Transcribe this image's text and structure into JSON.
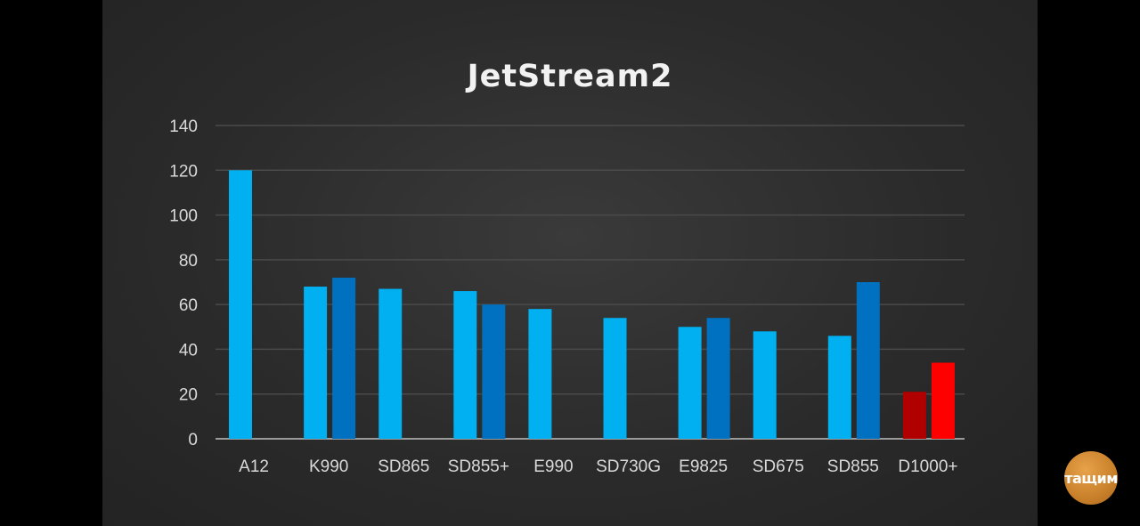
{
  "colors": {
    "series_light": "#00b0f0",
    "series_dark": "#0070c0",
    "highlight_dark": "#b00000",
    "highlight_light": "#ff0000",
    "logo": "#c9802a"
  },
  "logo": {
    "text": "тащим"
  },
  "chart_data": {
    "type": "bar",
    "title": "JetStream2",
    "xlabel": "",
    "ylabel": "",
    "ylim": [
      0,
      140
    ],
    "yticks": [
      0,
      20,
      40,
      60,
      80,
      100,
      120,
      140
    ],
    "grid": true,
    "legend": "none",
    "categories": [
      "A12",
      "K990",
      "SD865",
      "SD855+",
      "E990",
      "SD730G",
      "E9825",
      "SD675",
      "SD855",
      "D1000+"
    ],
    "series": [
      {
        "values": [
          120,
          68,
          67,
          66,
          58,
          54,
          50,
          48,
          46,
          21
        ]
      },
      {
        "values": [
          null,
          72,
          null,
          60,
          null,
          null,
          54,
          null,
          70,
          34
        ]
      }
    ],
    "highlight_category": "D1000+"
  }
}
